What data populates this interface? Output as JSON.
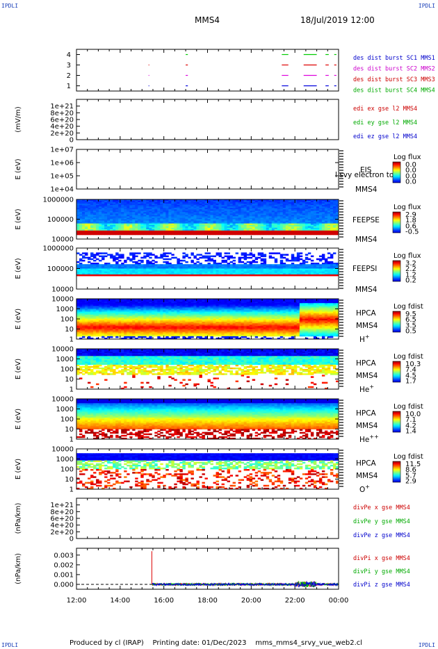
{
  "header": {
    "corner_tl": "IPDLI",
    "corner_tr": "IPDLI",
    "corner_bl": "IPDLI",
    "corner_br": "IPDLI",
    "spacecraft": "MMS4",
    "datetime": "18/Jul/2019 12:00"
  },
  "footer": {
    "produced_by": "Produced by cl (IRAP)",
    "printing_date": "Printing date: 01/Dec/2023",
    "script_name": "mms_mms4_srvy_vue_web2.cl"
  },
  "chart_data": [
    {
      "type": "scatter",
      "panel": "burst",
      "yticks": [
        "1",
        "2",
        "3",
        "4"
      ],
      "ylim": [
        0.5,
        4.5
      ],
      "legend": [
        {
          "text": "des dist burst SC1 MMS1",
          "color": "#0000cc"
        },
        {
          "text": "des dist burst SC2 MMS2",
          "color": "#cc00cc"
        },
        {
          "text": "des dist burst SC3 MMS3",
          "color": "#cc0000"
        },
        {
          "text": "des dist burst SC4 MMS4",
          "color": "#00aa00"
        }
      ],
      "series": [
        {
          "sc": 4,
          "color": "#00cc00",
          "intervals": [
            [
              17.0,
              17.1
            ],
            [
              21.4,
              21.7
            ],
            [
              22.4,
              23.0
            ],
            [
              23.4,
              23.55
            ],
            [
              23.8,
              23.9
            ]
          ]
        },
        {
          "sc": 3,
          "color": "#dd0000",
          "intervals": [
            [
              15.3,
              15.32
            ],
            [
              17.0,
              17.1
            ],
            [
              21.4,
              21.7
            ],
            [
              22.4,
              23.0
            ],
            [
              23.4,
              23.55
            ],
            [
              23.8,
              23.9
            ]
          ]
        },
        {
          "sc": 2,
          "color": "#dd00dd",
          "intervals": [
            [
              15.3,
              15.32
            ],
            [
              17.0,
              17.1
            ],
            [
              21.4,
              21.7
            ],
            [
              22.4,
              23.0
            ],
            [
              23.4,
              23.55
            ],
            [
              23.8,
              23.9
            ]
          ]
        },
        {
          "sc": 1,
          "color": "#0000dd",
          "intervals": [
            [
              15.3,
              15.32
            ],
            [
              17.0,
              17.1
            ],
            [
              21.4,
              21.7
            ],
            [
              22.4,
              23.0
            ],
            [
              23.4,
              23.55
            ],
            [
              23.8,
              23.9
            ]
          ]
        }
      ]
    },
    {
      "type": "line",
      "panel": "edi",
      "ylabel": "(mV/m)",
      "yticks": [
        "0",
        "2e+20",
        "4e+20",
        "6e+20",
        "8e+20",
        "1e+21"
      ],
      "ylim": [
        0,
        1.2e+21
      ],
      "legend": [
        {
          "text": "edi ex gse l2 MMS4",
          "color": "#cc0000"
        },
        {
          "text": "edi ey gse l2 MMS4",
          "color": "#00aa00"
        },
        {
          "text": "edi ez gse l2 MMS4",
          "color": "#0000cc"
        }
      ]
    },
    {
      "type": "heatmap",
      "panel": "eis",
      "ylabel": "E (eV)",
      "yticks": [
        "1e+04",
        "1e+05",
        "1e+06",
        "1e+07"
      ],
      "ylog": true,
      "label": "EIS",
      "sublabel": "MMS4",
      "overlay": "l svy electron to",
      "colorbar": {
        "title": "Log flux",
        "ticks": [
          "0.0",
          "0.0",
          "0.0",
          "0.0"
        ]
      },
      "empty": true
    },
    {
      "type": "heatmap",
      "panel": "feepse",
      "ylabel": "E (eV)",
      "yticks": [
        "10000",
        "100000",
        "1000000"
      ],
      "ylog": true,
      "label": "FEEPSE",
      "sublabel": "MMS4",
      "colorbar": {
        "title": "Log flux",
        "ticks": [
          "2.9",
          "1.8",
          "0.6",
          "-0.5"
        ]
      }
    },
    {
      "type": "heatmap",
      "panel": "feepsi",
      "ylabel": "E (eV)",
      "yticks": [
        "10000",
        "100000",
        "1000000"
      ],
      "ylog": true,
      "label": "FEEPSI",
      "sublabel": "MMS4",
      "colorbar": {
        "title": "Log flux",
        "ticks": [
          "3.2",
          "2.2",
          "1.2",
          "0.2"
        ]
      }
    },
    {
      "type": "heatmap",
      "panel": "hpca_h",
      "ylabel": "E (eV)",
      "yticks": [
        "1",
        "10",
        "100",
        "1000",
        "10000"
      ],
      "ylog": true,
      "label": "HPCA",
      "sublabel": "MMS4",
      "species": "H",
      "charge": "+",
      "colorbar": {
        "title": "Log fdist",
        "ticks": [
          "9.5",
          "6.5",
          "3.5",
          "0.5"
        ]
      }
    },
    {
      "type": "heatmap",
      "panel": "hpca_he",
      "ylabel": "E (eV)",
      "yticks": [
        "1",
        "10",
        "100",
        "1000",
        "10000"
      ],
      "ylog": true,
      "label": "HPCA",
      "sublabel": "MMS4",
      "species": "He",
      "charge": "+",
      "colorbar": {
        "title": "Log fdist",
        "ticks": [
          "10.3",
          "7.4",
          "4.5",
          "1.7"
        ]
      }
    },
    {
      "type": "heatmap",
      "panel": "hpca_hepp",
      "ylabel": "E (eV)",
      "yticks": [
        "1",
        "10",
        "100",
        "1000",
        "10000"
      ],
      "ylog": true,
      "label": "HPCA",
      "sublabel": "MMS4",
      "species": "He",
      "charge": "++",
      "colorbar": {
        "title": "Log fdist",
        "ticks": [
          "10.0",
          "7.1",
          "4.2",
          "1.4"
        ]
      }
    },
    {
      "type": "heatmap",
      "panel": "hpca_o",
      "ylabel": "E (eV)",
      "yticks": [
        "1",
        "10",
        "100",
        "1000",
        "10000"
      ],
      "ylog": true,
      "label": "HPCA",
      "sublabel": "MMS4",
      "species": "O",
      "charge": "+",
      "colorbar": {
        "title": "Log fdist",
        "ticks": [
          "11.5",
          "8.6",
          "5.7",
          "2.9"
        ]
      }
    },
    {
      "type": "line",
      "panel": "divpe",
      "ylabel": "(nPa/km)",
      "yticks": [
        "0",
        "2e+20",
        "4e+20",
        "6e+20",
        "8e+20",
        "1e+21"
      ],
      "ylim": [
        0,
        1.2e+21
      ],
      "legend": [
        {
          "text": "divPe x gse MMS4",
          "color": "#cc0000"
        },
        {
          "text": "divPe y gse MMS4",
          "color": "#00aa00"
        },
        {
          "text": "divPe z gse MMS4",
          "color": "#0000cc"
        }
      ]
    },
    {
      "type": "line",
      "panel": "divpi",
      "ylabel": "(nPa/km)",
      "yticks": [
        "0.000",
        "0.001",
        "0.002",
        "0.003"
      ],
      "ylim": [
        -0.0005,
        0.0037
      ],
      "xlabel_ticks": [
        "12:00",
        "14:00",
        "16:00",
        "18:00",
        "20:00",
        "22:00",
        "00:00"
      ],
      "xlim": [
        12,
        24
      ],
      "legend": [
        {
          "text": "divPi x gse MMS4",
          "color": "#cc0000"
        },
        {
          "text": "divPi y gse MMS4",
          "color": "#00aa00"
        },
        {
          "text": "divPi z gse MMS4",
          "color": "#0000cc"
        }
      ]
    }
  ]
}
